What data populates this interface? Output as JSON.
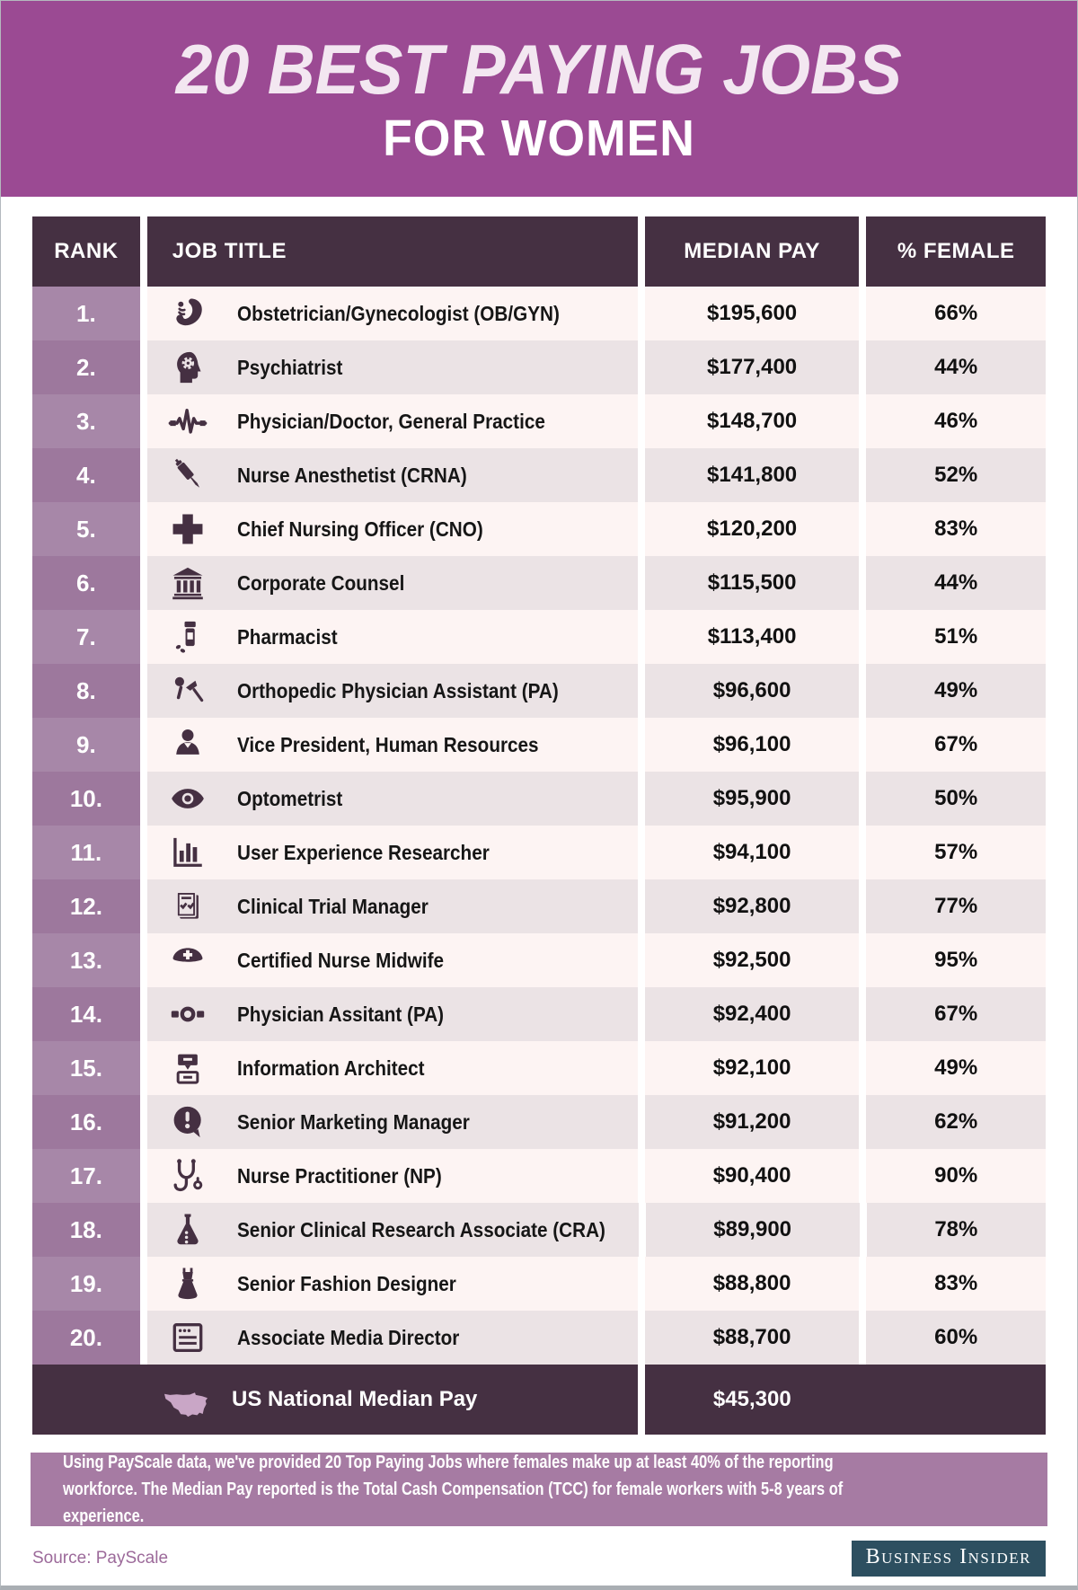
{
  "header": {
    "title_line1": "20 BEST PAYING JOBS",
    "title_line2": "FOR WOMEN"
  },
  "table": {
    "columns": {
      "rank": "RANK",
      "job": "JOB TITLE",
      "pay": "MEDIAN PAY",
      "female": "% FEMALE"
    },
    "rows": [
      {
        "rank": "1.",
        "icon": "fetus-icon",
        "job": "Obstetrician/Gynecologist (OB/GYN)",
        "pay": "$195,600",
        "female": "66%"
      },
      {
        "rank": "2.",
        "icon": "head-gear-icon",
        "job": "Psychiatrist",
        "pay": "$177,400",
        "female": "44%"
      },
      {
        "rank": "3.",
        "icon": "ekg-icon",
        "job": "Physician/Doctor, General Practice",
        "pay": "$148,700",
        "female": "46%"
      },
      {
        "rank": "4.",
        "icon": "syringe-icon",
        "job": "Nurse Anesthetist (CRNA)",
        "pay": "$141,800",
        "female": "52%"
      },
      {
        "rank": "5.",
        "icon": "medical-cross-icon",
        "job": "Chief Nursing Officer (CNO)",
        "pay": "$120,200",
        "female": "83%"
      },
      {
        "rank": "6.",
        "icon": "bank-icon",
        "job": "Corporate Counsel",
        "pay": "$115,500",
        "female": "44%"
      },
      {
        "rank": "7.",
        "icon": "pill-bottle-icon",
        "job": "Pharmacist",
        "pay": "$113,400",
        "female": "51%"
      },
      {
        "rank": "8.",
        "icon": "orthopedic-icon",
        "job": "Orthopedic Physician Assistant (PA)",
        "pay": "$96,600",
        "female": "49%"
      },
      {
        "rank": "9.",
        "icon": "person-icon",
        "job": "Vice President, Human Resources",
        "pay": "$96,100",
        "female": "67%"
      },
      {
        "rank": "10.",
        "icon": "eye-icon",
        "job": "Optometrist",
        "pay": "$95,900",
        "female": "50%"
      },
      {
        "rank": "11.",
        "icon": "bar-chart-icon",
        "job": "User Experience Researcher",
        "pay": "$94,100",
        "female": "57%"
      },
      {
        "rank": "12.",
        "icon": "clipboard-check-icon",
        "job": "Clinical Trial Manager",
        "pay": "$92,800",
        "female": "77%"
      },
      {
        "rank": "13.",
        "icon": "nurse-cap-icon",
        "job": "Certified Nurse Midwife",
        "pay": "$92,500",
        "female": "95%"
      },
      {
        "rank": "14.",
        "icon": "pa-belt-icon",
        "job": "Physician Assitant (PA)",
        "pay": "$92,400",
        "female": "67%"
      },
      {
        "rank": "15.",
        "icon": "info-architect-icon",
        "job": "Information Architect",
        "pay": "$92,100",
        "female": "49%"
      },
      {
        "rank": "16.",
        "icon": "marketing-bubble-icon",
        "job": "Senior Marketing Manager",
        "pay": "$91,200",
        "female": "62%"
      },
      {
        "rank": "17.",
        "icon": "stethoscope-icon",
        "job": "Nurse Practitioner (NP)",
        "pay": "$90,400",
        "female": "90%"
      },
      {
        "rank": "18.",
        "icon": "flask-icon",
        "job": "Senior Clinical Research Associate (CRA)",
        "pay": "$89,900",
        "female": "78%"
      },
      {
        "rank": "19.",
        "icon": "dress-icon",
        "job": "Senior Fashion Designer",
        "pay": "$88,800",
        "female": "83%"
      },
      {
        "rank": "20.",
        "icon": "media-doc-icon",
        "job": "Associate Media Director",
        "pay": "$88,700",
        "female": "60%"
      }
    ],
    "footer": {
      "icon": "us-map-icon",
      "label": "US National Median Pay",
      "pay": "$45,300"
    }
  },
  "note": "Using PayScale data, we've provided 20 Top Paying Jobs where females make up at least 40% of the reporting workforce. The Median Pay reported is the Total Cash Compensation (TCC) for female workers with 5-8 years of experience.",
  "source": "Source: PayScale",
  "brand": "Business Insider",
  "colors": {
    "banner": "#9b4a93",
    "table_header": "#453042",
    "rank_odd": "#a787a8",
    "rank_even": "#9d789d",
    "row_odd": "#fdf4f3",
    "row_even": "#ebe3e5",
    "note_bg": "#a67ba3",
    "brand_bg": "#2d4f60",
    "icon": "#453042"
  },
  "chart_data": {
    "type": "table",
    "title": "20 Best Paying Jobs for Women",
    "columns": [
      "Rank",
      "Job Title",
      "Median Pay (USD)",
      "% Female"
    ],
    "rows": [
      [
        1,
        "Obstetrician/Gynecologist (OB/GYN)",
        195600,
        66
      ],
      [
        2,
        "Psychiatrist",
        177400,
        44
      ],
      [
        3,
        "Physician/Doctor, General Practice",
        148700,
        46
      ],
      [
        4,
        "Nurse Anesthetist (CRNA)",
        141800,
        52
      ],
      [
        5,
        "Chief Nursing Officer (CNO)",
        120200,
        83
      ],
      [
        6,
        "Corporate Counsel",
        115500,
        44
      ],
      [
        7,
        "Pharmacist",
        113400,
        51
      ],
      [
        8,
        "Orthopedic Physician Assistant (PA)",
        96600,
        49
      ],
      [
        9,
        "Vice President, Human Resources",
        96100,
        67
      ],
      [
        10,
        "Optometrist",
        95900,
        50
      ],
      [
        11,
        "User Experience Researcher",
        94100,
        57
      ],
      [
        12,
        "Clinical Trial Manager",
        92800,
        77
      ],
      [
        13,
        "Certified Nurse Midwife",
        92500,
        95
      ],
      [
        14,
        "Physician Assitant (PA)",
        92400,
        67
      ],
      [
        15,
        "Information Architect",
        92100,
        49
      ],
      [
        16,
        "Senior Marketing Manager",
        91200,
        62
      ],
      [
        17,
        "Nurse Practitioner (NP)",
        90400,
        90
      ],
      [
        18,
        "Senior Clinical Research Associate (CRA)",
        89900,
        78
      ],
      [
        19,
        "Senior Fashion Designer",
        88800,
        83
      ],
      [
        20,
        "Associate Media Director",
        88700,
        60
      ]
    ],
    "footnote_row": [
      "US National Median Pay",
      45300
    ]
  }
}
